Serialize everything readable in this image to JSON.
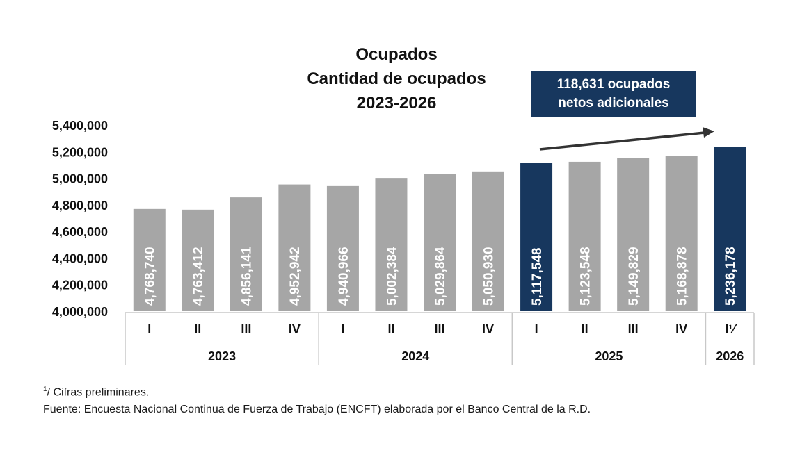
{
  "chart_data": {
    "type": "bar",
    "title_lines": [
      "Ocupados",
      "Cantidad de ocupados",
      "2023-2026"
    ],
    "categories": [
      "I",
      "II",
      "III",
      "IV",
      "I",
      "II",
      "III",
      "IV",
      "I",
      "II",
      "III",
      "IV",
      "I¹⁄"
    ],
    "years": [
      {
        "label": "2023",
        "count": 4
      },
      {
        "label": "2024",
        "count": 4
      },
      {
        "label": "2025",
        "count": 4
      },
      {
        "label": "2026",
        "count": 1
      }
    ],
    "values": [
      4768740,
      4763412,
      4856141,
      4952942,
      4940966,
      5002384,
      5029864,
      5050930,
      5117548,
      5123548,
      5149829,
      5168878,
      5236178
    ],
    "value_labels": [
      "4,768,740",
      "4,763,412",
      "4,856,141",
      "4,952,942",
      "4,940,966",
      "5,002,384",
      "5,029,864",
      "5,050,930",
      "5,117,548",
      "5,123,548",
      "5,149,829",
      "5,168,878",
      "5,236,178"
    ],
    "highlighted": [
      false,
      false,
      false,
      false,
      false,
      false,
      false,
      false,
      true,
      false,
      false,
      false,
      true
    ],
    "ylim": [
      4000000,
      5400000
    ],
    "yticks": [
      4000000,
      4200000,
      4400000,
      4600000,
      4800000,
      5000000,
      5200000,
      5400000
    ],
    "ytick_labels": [
      "4,000,000",
      "4,200,000",
      "4,400,000",
      "4,600,000",
      "4,800,000",
      "5,000,000",
      "5,200,000",
      "5,400,000"
    ],
    "colors": {
      "normal": "#a6a6a6",
      "highlight": "#17375e",
      "callout": "#17375e",
      "arrow": "#333333",
      "separator": "#c8c8c8"
    },
    "annotation": {
      "lines": [
        "118,631 ocupados",
        "netos adicionales"
      ]
    },
    "grid": false,
    "legend": "none"
  },
  "footnotes": {
    "note_marker": "1",
    "note_text": "/ Cifras preliminares.",
    "source": "Fuente: Encuesta Nacional Continua de Fuerza de Trabajo (ENCFT) elaborada por el Banco Central de la R.D."
  }
}
